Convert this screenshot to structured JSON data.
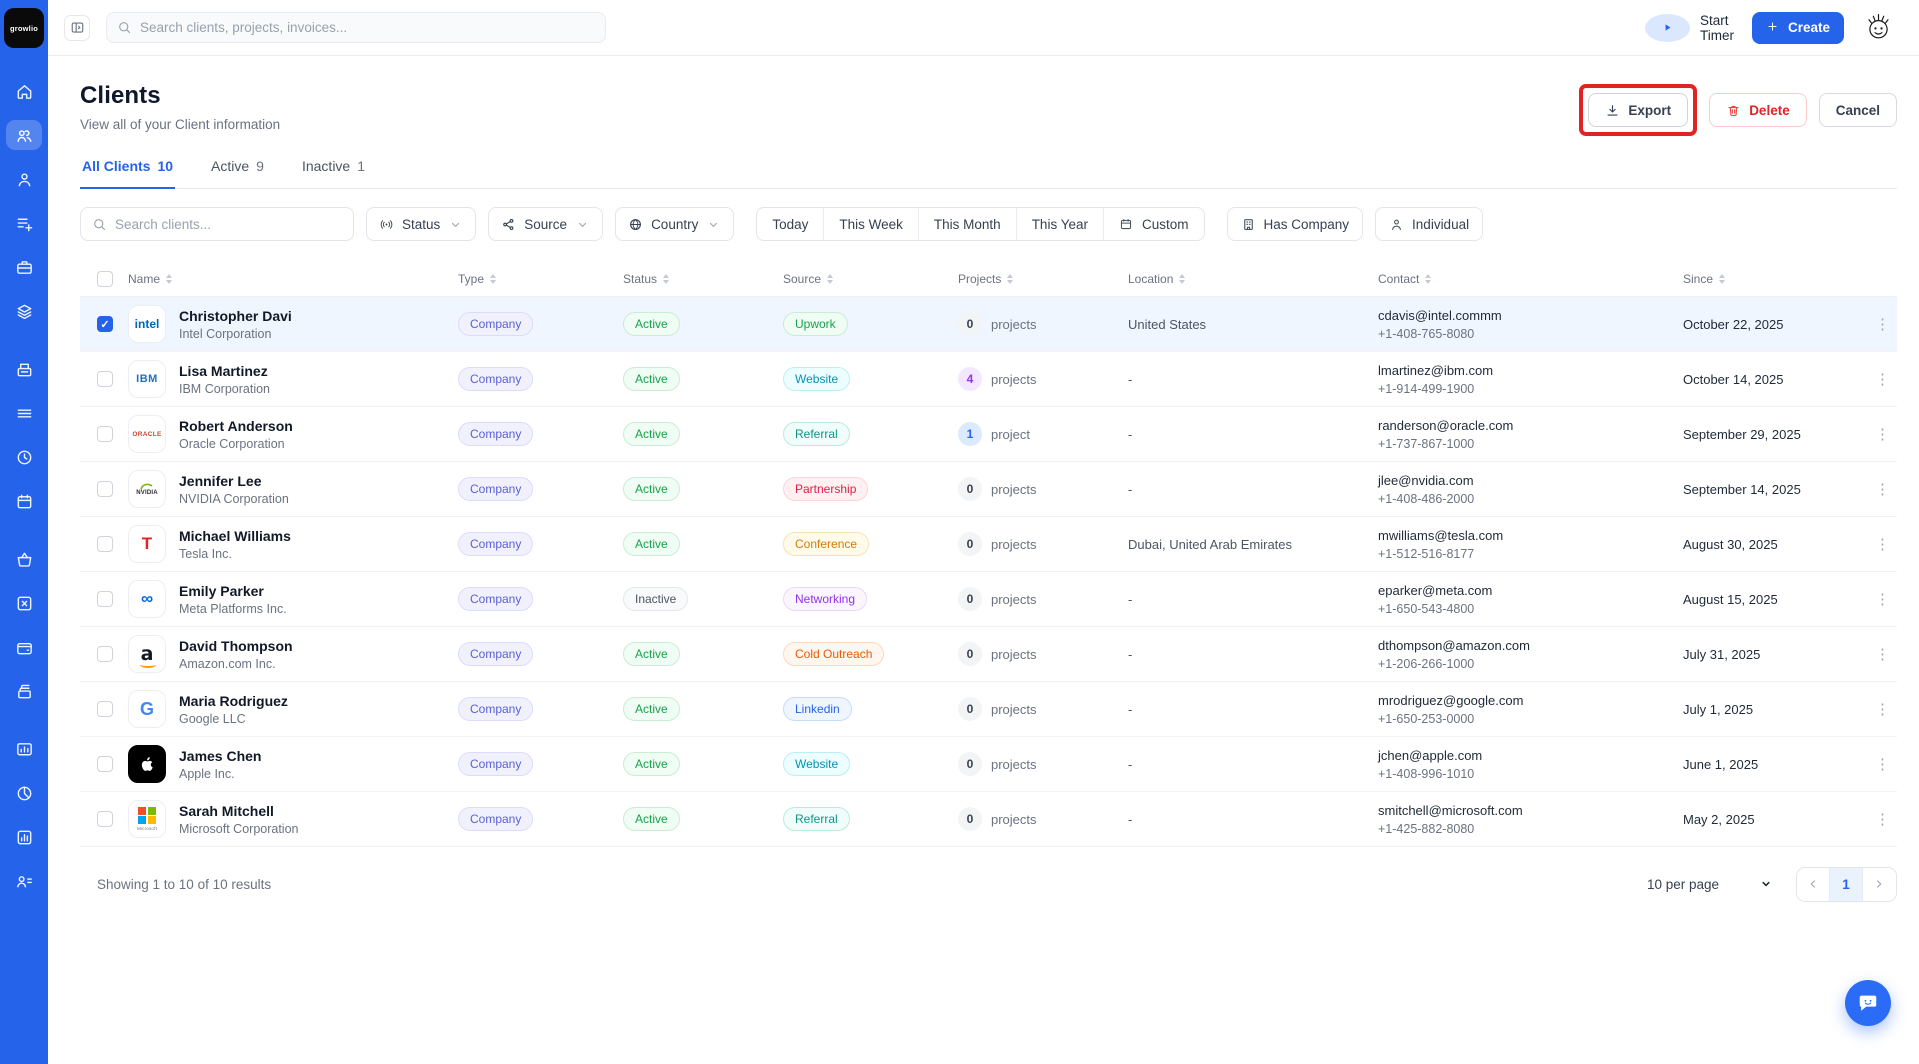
{
  "colors": {
    "accent": "#2563eb",
    "sidebar": "#2563eb",
    "highlight_annotation": "#e02424",
    "danger": "#dc2626",
    "selected_row": "#eff6ff"
  },
  "app": {
    "logo_text": "growlio"
  },
  "topbar": {
    "search_placeholder": "Search clients, projects, invoices...",
    "start_timer_label": "Start Timer",
    "create_label": "Create"
  },
  "sidebar": {
    "items": [
      {
        "name": "home",
        "icon": "home",
        "active": false,
        "gap": false
      },
      {
        "name": "clients",
        "icon": "clients",
        "active": true,
        "gap": false
      },
      {
        "name": "contacts",
        "icon": "contact",
        "active": false,
        "gap": false
      },
      {
        "name": "leads",
        "icon": "list-plus",
        "active": false,
        "gap": false
      },
      {
        "name": "projects",
        "icon": "briefcase",
        "active": false,
        "gap": false
      },
      {
        "name": "services",
        "icon": "layers",
        "active": false,
        "gap": false
      },
      {
        "name": "inbox",
        "icon": "archive",
        "active": false,
        "gap": true
      },
      {
        "name": "lists",
        "icon": "menu",
        "active": false,
        "gap": false
      },
      {
        "name": "time-tracking",
        "icon": "clock",
        "active": false,
        "gap": false
      },
      {
        "name": "calendar",
        "icon": "calendar",
        "active": false,
        "gap": false
      },
      {
        "name": "orders",
        "icon": "basket",
        "active": false,
        "gap": true
      },
      {
        "name": "cancellations",
        "icon": "close-box",
        "active": false,
        "gap": false
      },
      {
        "name": "payments",
        "icon": "wallet",
        "active": false,
        "gap": false
      },
      {
        "name": "invoices",
        "icon": "cards",
        "active": false,
        "gap": false
      },
      {
        "name": "analytics",
        "icon": "chart-monitor",
        "active": false,
        "gap": true
      },
      {
        "name": "reports",
        "icon": "pie",
        "active": false,
        "gap": false
      },
      {
        "name": "statements",
        "icon": "bar-chart",
        "active": false,
        "gap": false
      },
      {
        "name": "team",
        "icon": "user-list",
        "active": false,
        "gap": false
      }
    ]
  },
  "header": {
    "title": "Clients",
    "subtitle": "View all of your Client information",
    "export_label": "Export",
    "delete_label": "Delete",
    "cancel_label": "Cancel"
  },
  "tabs": [
    {
      "label": "All Clients",
      "count": "10",
      "active": true
    },
    {
      "label": "Active",
      "count": "9",
      "active": false
    },
    {
      "label": "Inactive",
      "count": "1",
      "active": false
    }
  ],
  "filters": {
    "search_placeholder": "Search clients...",
    "status_label": "Status",
    "source_label": "Source",
    "country_label": "Country",
    "date_options": [
      "Today",
      "This Week",
      "This Month",
      "This Year"
    ],
    "custom_label": "Custom",
    "has_company_label": "Has Company",
    "individual_label": "Individual"
  },
  "table": {
    "headers": [
      "Name",
      "Type",
      "Status",
      "Source",
      "Projects",
      "Location",
      "Contact",
      "Since"
    ],
    "rows": [
      {
        "selected": true,
        "name": "Christopher Davi",
        "company": "Intel Corporation",
        "logo": "intel",
        "type": "Company",
        "status": "Active",
        "status_variant": "green",
        "source": "Upwork",
        "source_variant": "green",
        "projects_count": "0",
        "projects_label": "projects",
        "projects_variant": "gray",
        "location": "United States",
        "email": "cdavis@intel.commm",
        "phone": "+1-408-765-8080",
        "since": "October 22, 2025"
      },
      {
        "selected": false,
        "name": "Lisa Martinez",
        "company": "IBM Corporation",
        "logo": "ibm",
        "type": "Company",
        "status": "Active",
        "status_variant": "green",
        "source": "Website",
        "source_variant": "cyan",
        "projects_count": "4",
        "projects_label": "projects",
        "projects_variant": "purple",
        "location": "-",
        "email": "lmartinez@ibm.com",
        "phone": "+1-914-499-1900",
        "since": "October 14, 2025"
      },
      {
        "selected": false,
        "name": "Robert Anderson",
        "company": "Oracle Corporation",
        "logo": "oracle",
        "type": "Company",
        "status": "Active",
        "status_variant": "green",
        "source": "Referral",
        "source_variant": "teal",
        "projects_count": "1",
        "projects_label": "project",
        "projects_variant": "blue",
        "location": "-",
        "email": "randerson@oracle.com",
        "phone": "+1-737-867-1000",
        "since": "September 29, 2025"
      },
      {
        "selected": false,
        "name": "Jennifer Lee",
        "company": "NVIDIA Corporation",
        "logo": "nvidia",
        "type": "Company",
        "status": "Active",
        "status_variant": "green",
        "source": "Partnership",
        "source_variant": "rose",
        "projects_count": "0",
        "projects_label": "projects",
        "projects_variant": "gray",
        "location": "-",
        "email": "jlee@nvidia.com",
        "phone": "+1-408-486-2000",
        "since": "September 14, 2025"
      },
      {
        "selected": false,
        "name": "Michael Williams",
        "company": "Tesla Inc.",
        "logo": "tesla",
        "type": "Company",
        "status": "Active",
        "status_variant": "green",
        "source": "Conference",
        "source_variant": "amber",
        "projects_count": "0",
        "projects_label": "projects",
        "projects_variant": "gray",
        "location": "Dubai, United Arab Emirates",
        "email": "mwilliams@tesla.com",
        "phone": "+1-512-516-8177",
        "since": "August 30, 2025"
      },
      {
        "selected": false,
        "name": "Emily Parker",
        "company": "Meta Platforms Inc.",
        "logo": "meta",
        "type": "Company",
        "status": "Inactive",
        "status_variant": "gray",
        "source": "Networking",
        "source_variant": "purple",
        "projects_count": "0",
        "projects_label": "projects",
        "projects_variant": "gray",
        "location": "-",
        "email": "eparker@meta.com",
        "phone": "+1-650-543-4800",
        "since": "August 15, 2025"
      },
      {
        "selected": false,
        "name": "David Thompson",
        "company": "Amazon.com Inc.",
        "logo": "amazon",
        "type": "Company",
        "status": "Active",
        "status_variant": "green",
        "source": "Cold Outreach",
        "source_variant": "orange",
        "projects_count": "0",
        "projects_label": "projects",
        "projects_variant": "gray",
        "location": "-",
        "email": "dthompson@amazon.com",
        "phone": "+1-206-266-1000",
        "since": "July 31, 2025"
      },
      {
        "selected": false,
        "name": "Maria Rodriguez",
        "company": "Google LLC",
        "logo": "google",
        "type": "Company",
        "status": "Active",
        "status_variant": "green",
        "source": "Linkedin",
        "source_variant": "blue",
        "projects_count": "0",
        "projects_label": "projects",
        "projects_variant": "gray",
        "location": "-",
        "email": "mrodriguez@google.com",
        "phone": "+1-650-253-0000",
        "since": "July 1, 2025"
      },
      {
        "selected": false,
        "name": "James Chen",
        "company": "Apple Inc.",
        "logo": "apple",
        "type": "Company",
        "status": "Active",
        "status_variant": "green",
        "source": "Website",
        "source_variant": "cyan",
        "projects_count": "0",
        "projects_label": "projects",
        "projects_variant": "gray",
        "location": "-",
        "email": "jchen@apple.com",
        "phone": "+1-408-996-1010",
        "since": "June 1, 2025"
      },
      {
        "selected": false,
        "name": "Sarah Mitchell",
        "company": "Microsoft Corporation",
        "logo": "microsoft",
        "type": "Company",
        "status": "Active",
        "status_variant": "green",
        "source": "Referral",
        "source_variant": "teal",
        "projects_count": "0",
        "projects_label": "projects",
        "projects_variant": "gray",
        "location": "-",
        "email": "smitchell@microsoft.com",
        "phone": "+1-425-882-8080",
        "since": "May 2, 2025"
      }
    ]
  },
  "footer": {
    "summary": "Showing 1 to 10 of 10 results",
    "per_page": "10 per page",
    "current_page": "1"
  }
}
